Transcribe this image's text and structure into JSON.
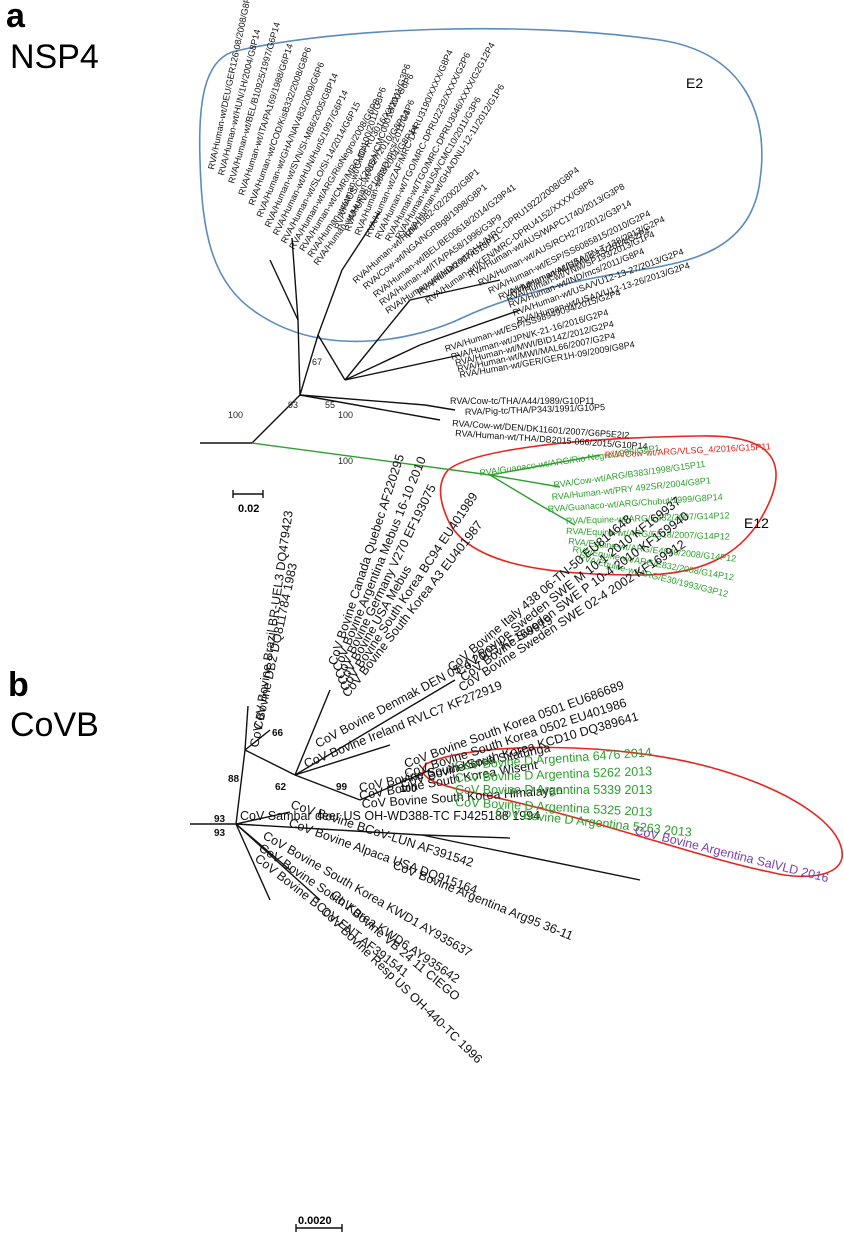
{
  "panel_a": {
    "letter": "a",
    "title": "NSP4",
    "cluster_e2": "E2",
    "cluster_e12": "E12",
    "scale": "0.02",
    "bootstrap": [
      "93",
      "67",
      "55",
      "100",
      "100",
      "100"
    ],
    "leaves_upper": [
      "RVA/Human-wt/DEU/GER126-08/2008/G8P14",
      "RVA/Human-wt/HUN/1H/2004/G8P14",
      "RVA/Human-wt/BEL/B10925/1997/G6P14",
      "RVA/Human-wt/ITA/PA169/1988/G6P14",
      "RVA/Human-wt/COD/KisB332/2008/G8P6",
      "RVA/Human-wt/GHA/NAV483/2009/G6P6",
      "RVA/Human-wt/SVN/SI-MB6/2005/G8P14",
      "RVA/Human-wt/HUN/Hun5/1997/G6P14",
      "RVA/Human-wt/SLO/SI-14/2014/G6P15",
      "RVA/Human-wt/ARG/RioNegro/2008/G6P8",
      "RVA/Human-wt/CMR/MRC-DPRU3016/XXXX/G6P6",
      "RVA/Human-wt/AUS/CK20027/2010/G8P14",
      "RVA/Human-wt/HUN/BP1062/2004/G8P14",
      "RVA/Human-wt/CMC/100/2011/G3P6",
      "RVA/Human-wt/USA/CMC00016/2011/G3P6",
      "RVA/Human-wt/IND/mcs/2011/G3P6",
      "RVA/Human-wt/ZAF/MRC-DPRU3190/XXXX/G8P4",
      "RVA/Human-wt/TGO/MRC-DPRU2232/XXXX/G2P6",
      "RVA/Human-wt/TGO/MRC-DPRU3046/XXXX/G2G12P4",
      "RVA/Human-wt/USA/CMC10/2011/G3P6",
      "RVA/Human-wt/GHA/DNU-12-11/2012/G1P6",
      "RVA/Human-wt/HUN/1982-02/2002/G8P1",
      "RVA/Cow-wt/NGA/NGRBg8/1998/G8P1",
      "RVA/Human-wt/BEL/BE00618/2014/G29P41",
      "RVA/Human-wt/ITA/PA58/1996/G3P9",
      "RVA/Human-wt/IND/2007/G10P11",
      "RVA/Human-wt/GHA/MRC-DPRU1922/2008/G8P4",
      "RVA/Human-wt/KEN/MRC-DPRU4152/XXXX/G8P6",
      "RVA/Human-wt/AUS/WAPC1740/2013/G3P8",
      "RVA/Human-wt/AUS/RCH272/2012/G3P14",
      "RVA/Human-wt/ESP/SS6085815/2010/G2P4",
      "RVA/Human-wt/AUS/MU4-15/2014/G2P4",
      "RVA/Human-wt/IND/mcs/2011/G8P4",
      "RVA/Human-wt/USA/VU12-13-27/2013/G2P4",
      "RVA/Human-wt/USA/VU12-13-26/2013/G2P4",
      "RVA/Human-wt/VNM/SP193/2013/G1P4",
      "RVA/Human-wt/USA/TN-T-138/2013/G2P4"
    ],
    "leaves_mid": [
      "RVA/Human-wt/ESP/SS98949094/2015/G2P4",
      "RVA/Human-wt/JPN/K-21-16/2016/G2P4",
      "RVA/Human-wt/MWI/BID14Z/2012/G2P4",
      "RVA/Human-wt/MWI/MAL66/2007/G2P4",
      "RVA/Human-wt/GER/GER1H-09/2009/G8P4"
    ],
    "leaves_bovine": [
      "RVA/Cow-tc/THA/A44/1989/G10P11",
      "RVA/Pig-tc/THA/P343/1991/G10P5",
      "RVA/Cow-wt/DEN/DK11601/2007/G6P5E2I2",
      "RVA/Human-wt/THA/DB2015-066/2015/G10P14"
    ],
    "leaf_red": "RVA/Cow-wt/ARG/VLSG_4/2016/G15P11",
    "leaves_green": [
      "RVA/Guanaco-wt/ARG/Rio Negro/1998/G8P1",
      "RVA/Cow-wt/ARG/B383/1998/G15P11",
      "RVA/Human-wt/PRY 492SR/2004/G8P1",
      "RVA/Guanaco-wt/ARG/Chubut/1999/G8P14",
      "RVA/Equine-wt/ARG/E432/2007/G14P12",
      "RVA/Equine-wt/ARG/E518/2007/G14P12",
      "RVA/Equine-wt/ARG/E4040/2008/G14P12",
      "RVA/Equine-wt/ARG/E832/2008/G14P12",
      "RVA/Equine-wt/ARG/E30/1993/G3P12"
    ]
  },
  "panel_b": {
    "letter": "b",
    "title": "CoVB",
    "scale": "0.0020",
    "bootstrap": [
      "88",
      "66",
      "62",
      "99",
      "93",
      "93",
      "100"
    ],
    "leaves_top": [
      "CoV Bovine Brazil BR-UEL3 DQ479423",
      "CoV Bovine DB2 DQ811784 1983",
      "CoV Bovine Canada Quebec AF220295",
      "CoV Bovine Argentina Mebus 16-10 2010",
      "CoV Bovine Germany V270 EF193075",
      "CoV Bovine USA Mebus",
      "CoV Bovine South Korea BC94 EU401989",
      "CoV Bovine South Korea A3 EU401987",
      "CoV Bovine Italy 438 06-TN-50 EU814648",
      "CoV Bovine Sweden SWE M 10-1 2010 KF169937",
      "CoV Bovine Sweden SWE P 10-4 2010 KF169940",
      "CoV Bovine Sweden SWE 02-4 2002 KF169912",
      "CoV Bovine Denmak DEN 05-4 2005 KF169919",
      "CoV Bovine Ireland RVLC7 KF272919",
      "CoV Bovine South Korea 0501 EU686689",
      "CoV Bovine South Korea 0502 EU401986",
      "CoV Bovine South Korea KCD10 DQ389641",
      "CoV Bovine South Korea Sitatunga",
      "CoV Bovine South Korea Wisent",
      "CoV Bovine South Korea Himalayan",
      "CoV Sambar deer US OH-WD388-TC FJ425188 1994"
    ],
    "leaves_green": [
      "CoV Bovine D Argentina 6476 2014",
      "CoV Bovine D Argentina 5262 2013",
      "CoV Bovine D Argentina 5339 2013",
      "CoV Bovine D Argentina 5325 2013",
      "CoV Bovine D Argentina 5263 2013"
    ],
    "leaf_purple": "CoV Bovine Argentina SalVLD 2016",
    "leaves_bottom": [
      "CoV Bovine BCoV-LUN AF391542",
      "CoV Bovine Alpaca USA DQ915164",
      "CoV Bovine Argentina Arg95 36-11",
      "CoV Bovine South Korea KWD1 AY935637",
      "CoV Bovine South Korea KWD6 AY935642",
      "CoV Bovine BCoV-ENT AF391541",
      "CoV Bovine VB 24 11 CIEGO",
      "CoV Bovine Resp US OH-440-TC 1996"
    ]
  }
}
